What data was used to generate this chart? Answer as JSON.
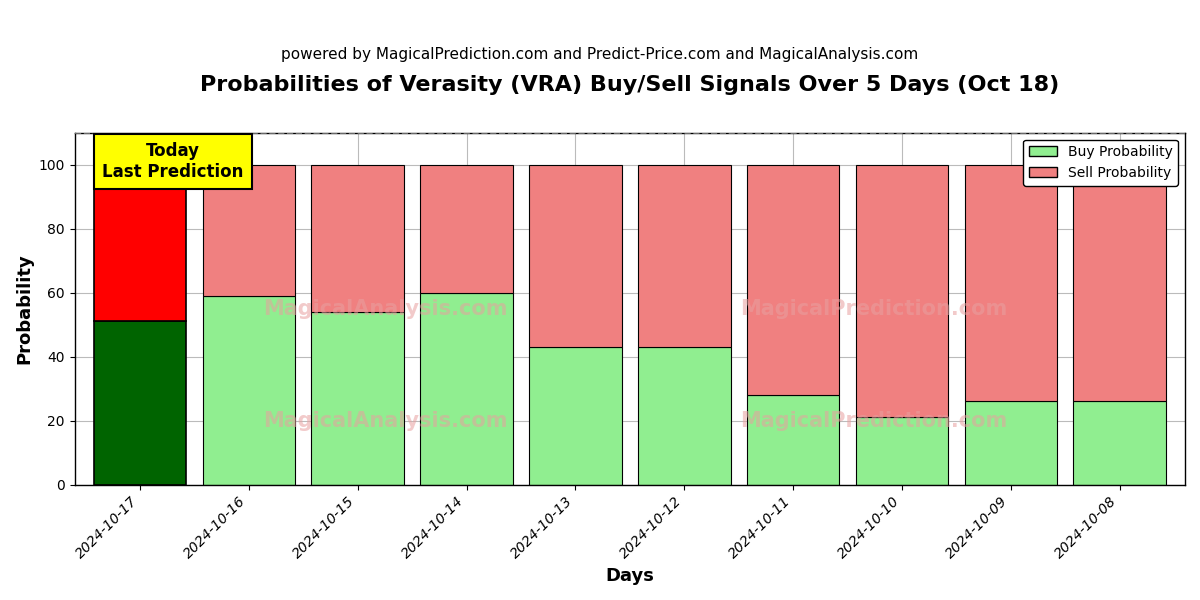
{
  "title": "Probabilities of Verasity (VRA) Buy/Sell Signals Over 5 Days (Oct 18)",
  "subtitle": "powered by MagicalPrediction.com and Predict-Price.com and MagicalAnalysis.com",
  "xlabel": "Days",
  "ylabel": "Probability",
  "watermark_line1": "MagicalAnalysis.com",
  "watermark_line2": "MagicalPrediction.com",
  "dates": [
    "2024-10-17",
    "2024-10-16",
    "2024-10-15",
    "2024-10-14",
    "2024-10-13",
    "2024-10-12",
    "2024-10-11",
    "2024-10-10",
    "2024-10-09",
    "2024-10-08"
  ],
  "buy_values": [
    51,
    59,
    54,
    60,
    43,
    43,
    28,
    21,
    26,
    26
  ],
  "sell_values": [
    49,
    41,
    46,
    40,
    57,
    57,
    72,
    79,
    74,
    74
  ],
  "today_buy_color": "#006400",
  "today_sell_color": "#ff0000",
  "buy_color": "#90EE90",
  "sell_color": "#F08080",
  "today_label_bg": "#ffff00",
  "today_label_text": "Today\nLast Prediction",
  "legend_buy": "Buy Probability",
  "legend_sell": "Sell Probability",
  "ylim": [
    0,
    110
  ],
  "yticks": [
    0,
    20,
    40,
    60,
    80,
    100
  ],
  "dashed_line_y": 110,
  "bar_width": 0.85,
  "edgecolor": "black",
  "grid_color": "#bbbbbb",
  "background_color": "#ffffff",
  "title_fontsize": 16,
  "subtitle_fontsize": 11,
  "axis_label_fontsize": 13
}
